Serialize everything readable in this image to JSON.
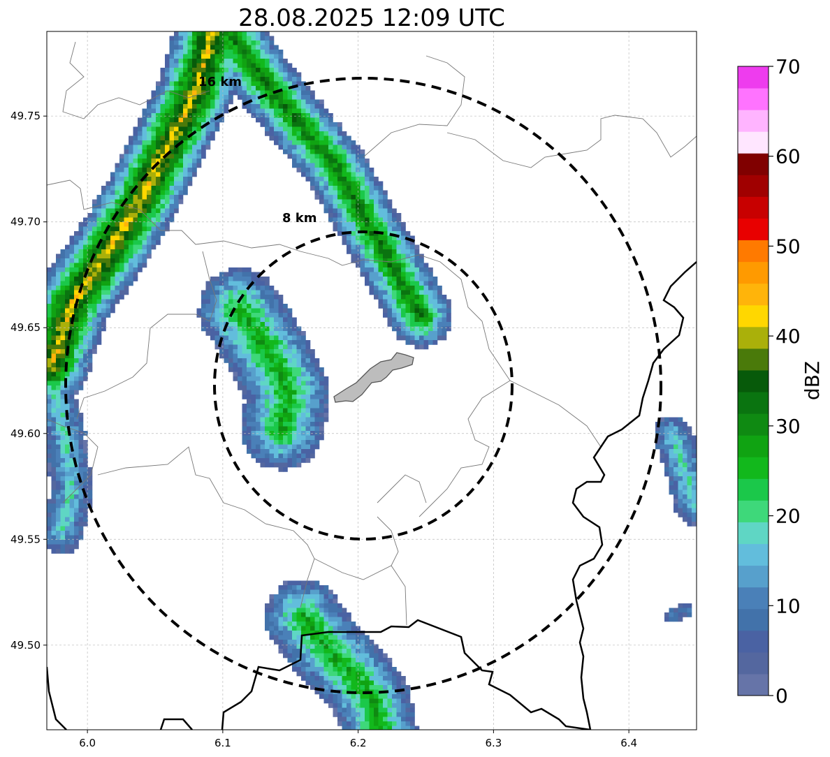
{
  "title": "28.08.2025 12:09 UTC",
  "map": {
    "lon_range": [
      5.97,
      6.45
    ],
    "lat_range": [
      49.46,
      49.79
    ],
    "x_ticks": [
      "6.0",
      "6.1",
      "6.2",
      "6.3",
      "6.4"
    ],
    "y_ticks": [
      "49.75",
      "49.70",
      "49.65",
      "49.60",
      "49.55",
      "49.50"
    ],
    "grid": true,
    "ring_labels": [
      "16 km",
      "8 km"
    ],
    "ring_radii_km": [
      16,
      8
    ],
    "ring_center": [
      6.204,
      49.623
    ]
  },
  "colorbar": {
    "label": "dBZ",
    "ticks": [
      "0",
      "10",
      "20",
      "30",
      "40",
      "50",
      "60",
      "70"
    ],
    "colors": [
      "#6674a8",
      "#54679f",
      "#4a62a3",
      "#4272aa",
      "#4a80b8",
      "#57a0cc",
      "#62bddc",
      "#5fd6c4",
      "#3ed87a",
      "#1bc84a",
      "#12b81c",
      "#10a312",
      "#0f8a12",
      "#0a7410",
      "#075a0a",
      "#4a7a0a",
      "#aab00a",
      "#ffd700",
      "#ffb40a",
      "#ff9a00",
      "#ff7a00",
      "#e80000",
      "#c80000",
      "#a00000",
      "#800000",
      "#ffe6ff",
      "#ffb4ff",
      "#ff73ff",
      "#ee3cee"
    ]
  }
}
